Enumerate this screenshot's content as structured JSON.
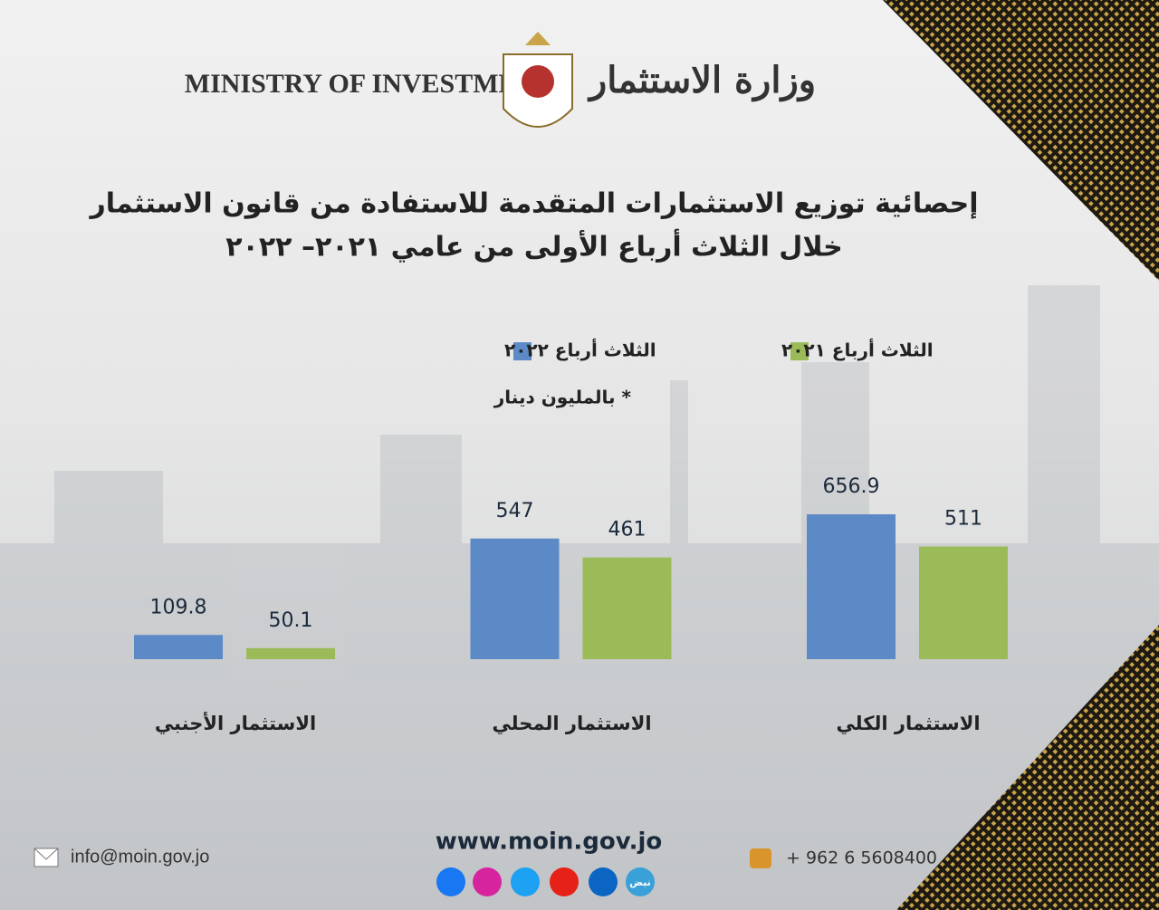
{
  "header": {
    "en_name": "MINISTRY OF INVESTMENT",
    "ar_name": "وزارة الاستثمار"
  },
  "chart_data": {
    "type": "bar",
    "title": "إحصائية توزيع الاستثمارات المتقدمة للاستفادة من قانون الاستثمار",
    "subtitle": "خلال الثلاث أرباع الأولى من عامي ٢٠٢١– ٢٠٢٢",
    "note": "* بالمليون دينار",
    "categories": [
      "الاستثمار الكلي",
      "الاستثمار المحلي",
      "الاستثمار الأجنبي"
    ],
    "series": [
      {
        "name": "الثلاث أرباع ٢٠٢٢",
        "color": "#5b8ac6",
        "values": [
          656.9,
          547,
          109.8
        ]
      },
      {
        "name": "الثلاث أرباع ٢٠٢١",
        "color": "#9bbb59",
        "values": [
          511,
          461,
          50.1
        ]
      }
    ]
  },
  "footer": {
    "website": "www.moin.gov.jo",
    "email": "info@moin.gov.jo",
    "phone": "+ 962 6 5608400",
    "social_badge": "نبض"
  }
}
